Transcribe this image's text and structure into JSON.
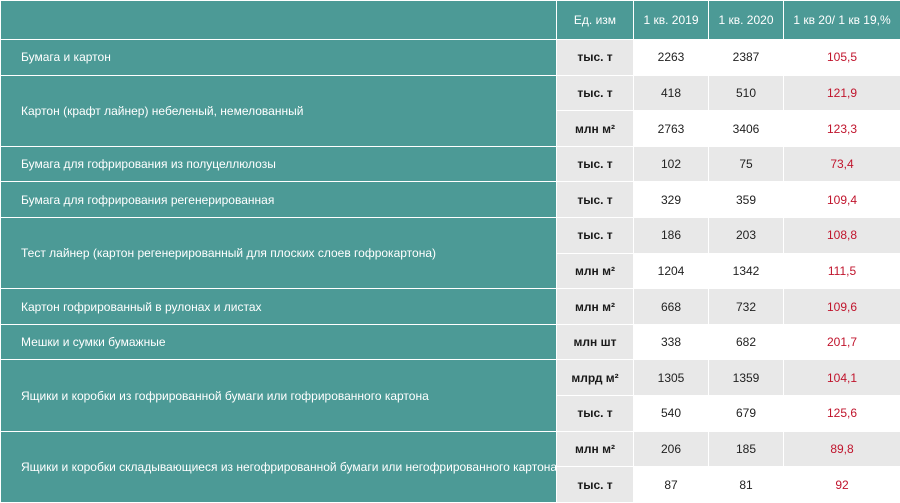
{
  "header": {
    "unit": "Ед. изм",
    "q2019": "1 кв. 2019",
    "q2020": "1 кв. 2020",
    "ratio": "1 кв 20/ 1 кв 19,%"
  },
  "groups": [
    {
      "name": "Бумага и картон",
      "rows": [
        {
          "unit": "тыс. т",
          "q2019": "2263",
          "q2020": "2387",
          "ratio": "105,5"
        }
      ]
    },
    {
      "name": "Картон (крафт лайнер) небеленый, немелованный",
      "rows": [
        {
          "unit": "тыс. т",
          "q2019": "418",
          "q2020": "510",
          "ratio": "121,9"
        },
        {
          "unit": "млн м²",
          "q2019": "2763",
          "q2020": "3406",
          "ratio": "123,3"
        }
      ]
    },
    {
      "name": "Бумага для гофрирования из полуцеллюлозы",
      "rows": [
        {
          "unit": "тыс. т",
          "q2019": "102",
          "q2020": "75",
          "ratio": "73,4"
        }
      ]
    },
    {
      "name": "Бумага для гофрирования регенерированная",
      "rows": [
        {
          "unit": "тыс. т",
          "q2019": "329",
          "q2020": "359",
          "ratio": "109,4"
        }
      ]
    },
    {
      "name": "Тест лайнер (картон регенерированный для плоских слоев гофрокартона)",
      "rows": [
        {
          "unit": "тыс. т",
          "q2019": "186",
          "q2020": "203",
          "ratio": "108,8"
        },
        {
          "unit": "млн м²",
          "q2019": "1204",
          "q2020": "1342",
          "ratio": "111,5"
        }
      ]
    },
    {
      "name": "Картон гофрированный в рулонах и листах",
      "rows": [
        {
          "unit": "млн м²",
          "q2019": "668",
          "q2020": "732",
          "ratio": "109,6"
        }
      ]
    },
    {
      "name": "Мешки и сумки бумажные",
      "rows": [
        {
          "unit": "млн шт",
          "q2019": "338",
          "q2020": "682",
          "ratio": "201,7"
        }
      ]
    },
    {
      "name": "Ящики и коробки из гофрированной бумаги или гофрированного картона",
      "rows": [
        {
          "unit": "млрд м²",
          "q2019": "1305",
          "q2020": "1359",
          "ratio": "104,1"
        },
        {
          "unit": "тыс. т",
          "q2019": "540",
          "q2020": "679",
          "ratio": "125,6"
        }
      ]
    },
    {
      "name": "Ящики и коробки складывающиеся из негофрированной бумаги или негофрированного картона",
      "rows": [
        {
          "unit": "млн м²",
          "q2019": "206",
          "q2020": "185",
          "ratio": "89,8"
        },
        {
          "unit": "тыс. т",
          "q2019": "87",
          "q2020": "81",
          "ratio": "92"
        }
      ]
    }
  ]
}
